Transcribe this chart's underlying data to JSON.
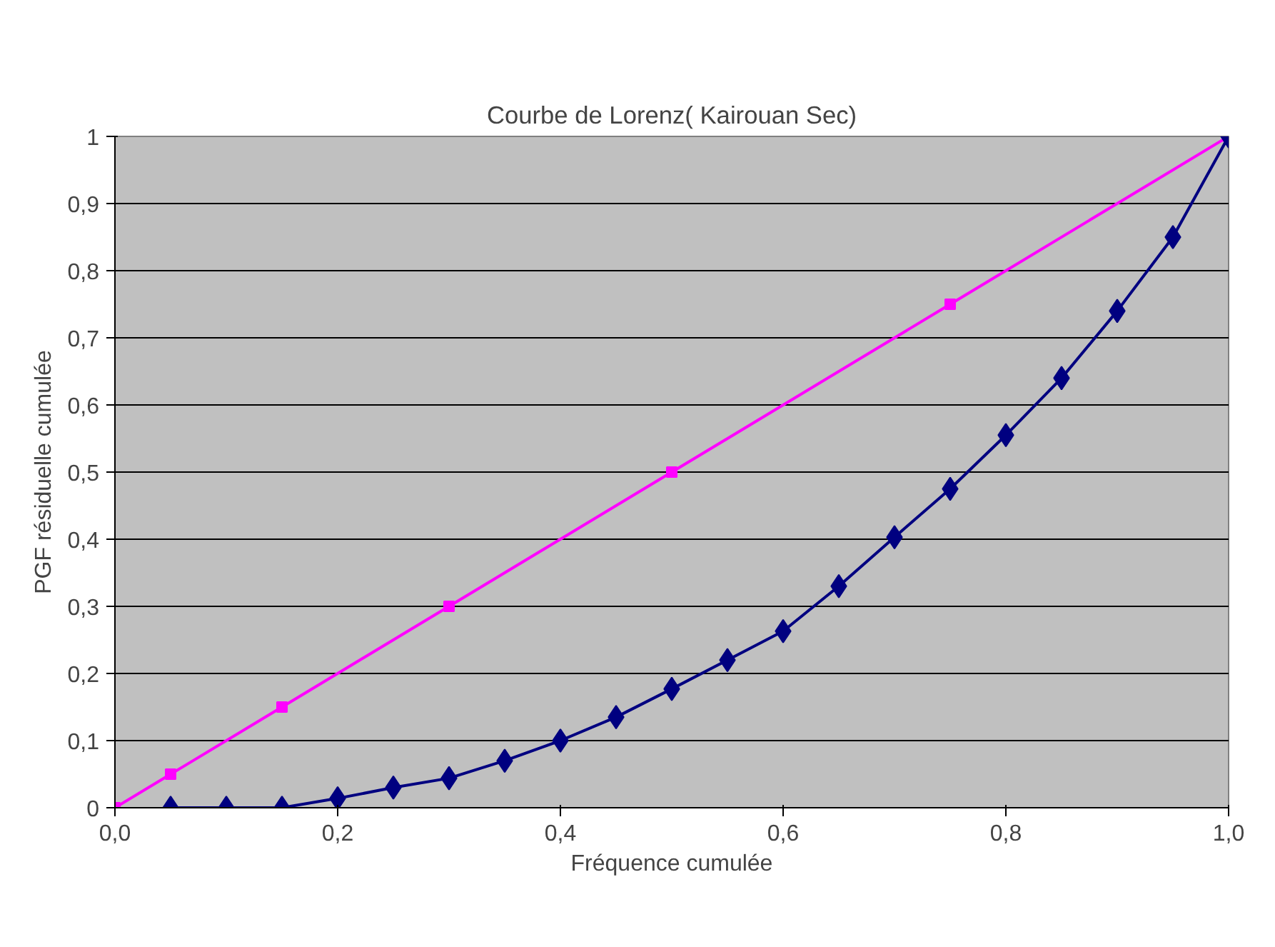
{
  "chart_data": {
    "type": "line",
    "title": "Courbe de Lorenz( Kairouan Sec)",
    "xlabel": "Fréquence cumulée",
    "ylabel": "PGF résiduelle cumulée",
    "xlim": [
      0,
      1
    ],
    "ylim": [
      0,
      1
    ],
    "xticks": [
      {
        "value": 0,
        "label": "0,0"
      },
      {
        "value": 0.2,
        "label": "0,2"
      },
      {
        "value": 0.4,
        "label": "0,4"
      },
      {
        "value": 0.6,
        "label": "0,6"
      },
      {
        "value": 0.8,
        "label": "0,8"
      },
      {
        "value": 1,
        "label": "1,0"
      }
    ],
    "yticks": [
      0,
      {
        "value": 0.1,
        "label": "0,1"
      },
      {
        "value": 0.2,
        "label": "0,2"
      },
      {
        "value": 0.3,
        "label": "0,3"
      },
      {
        "value": 0.4,
        "label": "0,4"
      },
      {
        "value": 0.5,
        "label": "0,5"
      },
      {
        "value": 0.6,
        "label": "0,6"
      },
      {
        "value": 0.7,
        "label": "0,7"
      },
      {
        "value": 0.8,
        "label": "0,8"
      },
      {
        "value": 0.9,
        "label": "0,9"
      },
      1
    ],
    "grid": "y",
    "line_style": "solid",
    "series": [
      {
        "color": "#ff00ff",
        "marker": "square",
        "x": [
          0,
          0.05,
          0.15,
          0.3,
          0.5,
          0.75,
          1
        ],
        "values": [
          0,
          0.05,
          0.15,
          0.3,
          0.5,
          0.75,
          1
        ]
      },
      {
        "color": "#000080",
        "marker": "diamond",
        "x": [
          0.05,
          0.1,
          0.15,
          0.2,
          0.25,
          0.3,
          0.35,
          0.4,
          0.45,
          0.5,
          0.55,
          0.6,
          0.65,
          0.7,
          0.75,
          0.8,
          0.85,
          0.9,
          0.95,
          1
        ],
        "values": [
          0,
          0,
          0,
          0.014,
          0.03,
          0.044,
          0.07,
          0.1,
          0.135,
          0.177,
          0.22,
          0.263,
          0.33,
          0.403,
          0.475,
          0.555,
          0.64,
          0.74,
          0.85,
          1
        ]
      }
    ]
  }
}
